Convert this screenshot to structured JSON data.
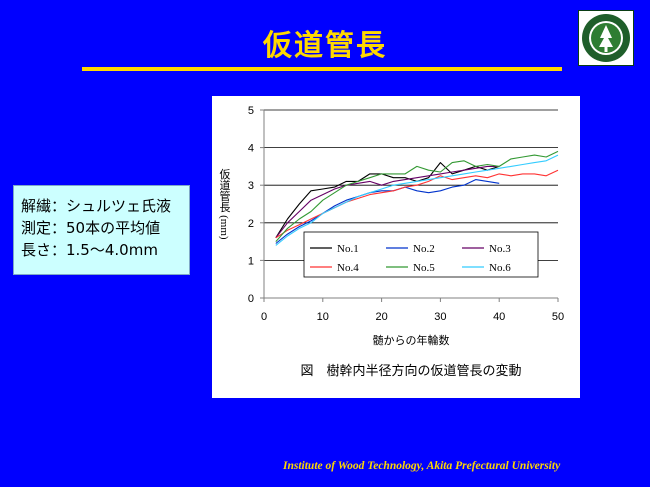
{
  "slide": {
    "title": "仮道管長",
    "footer": "Institute of Wood Technology, Akita Prefectural University",
    "accent_color": "#ffd800",
    "background_color": "#0000ff"
  },
  "logo": {
    "icon": "university-emblem-icon",
    "caption": "Akita Prefectural University"
  },
  "info_box": {
    "lines": [
      "解繊：シュルツェ氏液",
      "測定：50本の平均値",
      "長さ：1.5～4.0mm"
    ]
  },
  "chart_data": {
    "type": "line",
    "ylabel": "仮道管長 (mm)",
    "xlabel": "髄からの年輪数",
    "caption": "図　樹幹内半径方向の仮道管長の変動",
    "xlim": [
      0,
      50
    ],
    "ylim": [
      0,
      5
    ],
    "xticks": [
      0,
      10,
      20,
      30,
      40,
      50
    ],
    "yticks": [
      0,
      1,
      2,
      3,
      4,
      5
    ],
    "grid": "horizontal",
    "legend_placement": "bottom-right inside plot",
    "series": [
      {
        "name": "No.1",
        "color": "#000000",
        "x": [
          2,
          4,
          6,
          8,
          10,
          12,
          14,
          16,
          18,
          20,
          22,
          24,
          26,
          28,
          30,
          32,
          34,
          36,
          38,
          40
        ],
        "y": [
          1.6,
          2.1,
          2.5,
          2.85,
          2.9,
          2.95,
          3.1,
          3.1,
          3.3,
          3.3,
          3.2,
          3.2,
          3.1,
          3.2,
          3.6,
          3.3,
          3.4,
          3.5,
          3.4,
          3.5
        ]
      },
      {
        "name": "No.2",
        "color": "#0033cc",
        "x": [
          2,
          4,
          6,
          8,
          10,
          12,
          14,
          16,
          18,
          20,
          22,
          24,
          26,
          28,
          30,
          32,
          34,
          36,
          38,
          40
        ],
        "y": [
          1.45,
          1.7,
          1.9,
          2.05,
          2.25,
          2.45,
          2.6,
          2.7,
          2.8,
          2.85,
          2.85,
          2.95,
          2.85,
          2.8,
          2.85,
          2.95,
          3.0,
          3.15,
          3.1,
          3.05
        ]
      },
      {
        "name": "No.3",
        "color": "#660066",
        "x": [
          2,
          4,
          6,
          8,
          10,
          12,
          14,
          16,
          18,
          20,
          22,
          24,
          26,
          28,
          30,
          32,
          34,
          36,
          38,
          40
        ],
        "y": [
          1.6,
          2.0,
          2.3,
          2.6,
          2.75,
          2.9,
          3.0,
          3.05,
          3.1,
          3.0,
          3.1,
          3.15,
          3.2,
          3.25,
          3.3,
          3.35,
          3.4,
          3.45,
          3.5,
          3.5
        ]
      },
      {
        "name": "No.4",
        "color": "#ff3333",
        "x": [
          2,
          4,
          6,
          8,
          10,
          12,
          14,
          16,
          18,
          20,
          22,
          24,
          26,
          28,
          30,
          32,
          34,
          36,
          38,
          40,
          42,
          44,
          46,
          48,
          50
        ],
        "y": [
          1.6,
          1.8,
          1.95,
          2.1,
          2.25,
          2.4,
          2.55,
          2.65,
          2.75,
          2.8,
          2.85,
          2.95,
          3.0,
          3.1,
          3.25,
          3.15,
          3.2,
          3.25,
          3.2,
          3.3,
          3.25,
          3.3,
          3.3,
          3.25,
          3.4
        ]
      },
      {
        "name": "No.5",
        "color": "#339933",
        "x": [
          2,
          4,
          6,
          8,
          10,
          12,
          14,
          16,
          18,
          20,
          22,
          24,
          26,
          28,
          30,
          32,
          34,
          36,
          38,
          40,
          42,
          44,
          46,
          48,
          50
        ],
        "y": [
          1.5,
          1.85,
          2.1,
          2.3,
          2.6,
          2.8,
          3.0,
          3.1,
          3.2,
          3.3,
          3.3,
          3.3,
          3.5,
          3.4,
          3.35,
          3.6,
          3.65,
          3.5,
          3.55,
          3.5,
          3.7,
          3.75,
          3.8,
          3.75,
          3.9
        ]
      },
      {
        "name": "No.6",
        "color": "#33ccff",
        "x": [
          2,
          4,
          6,
          8,
          10,
          12,
          14,
          16,
          18,
          20,
          22,
          24,
          26,
          28,
          30,
          32,
          34,
          36,
          38,
          40,
          42,
          44,
          46,
          48,
          50
        ],
        "y": [
          1.4,
          1.65,
          1.85,
          2.0,
          2.25,
          2.4,
          2.55,
          2.7,
          2.8,
          2.9,
          3.0,
          3.05,
          3.1,
          3.15,
          3.2,
          3.25,
          3.3,
          3.35,
          3.4,
          3.45,
          3.5,
          3.55,
          3.6,
          3.65,
          3.8
        ]
      }
    ]
  }
}
